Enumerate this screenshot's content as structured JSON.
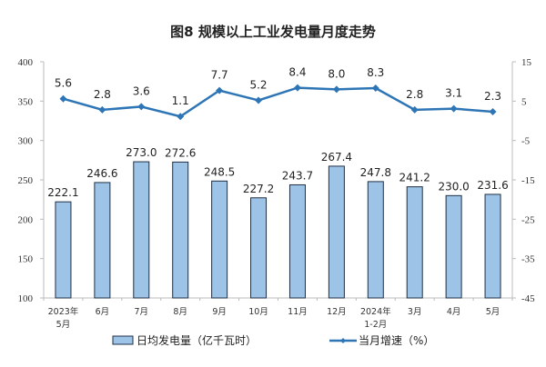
{
  "chart_data": {
    "type": "bar+line",
    "title": "图8  规模以上工业发电量月度走势",
    "categories": [
      [
        "2023年",
        "5月"
      ],
      [
        "6月"
      ],
      [
        "7月"
      ],
      [
        "8月"
      ],
      [
        "9月"
      ],
      [
        "10月"
      ],
      [
        "11月"
      ],
      [
        "12月"
      ],
      [
        "2024年",
        "1-2月"
      ],
      [
        "3月"
      ],
      [
        "4月"
      ],
      [
        "5月"
      ]
    ],
    "series": [
      {
        "name": "日均发电量（亿千瓦时）",
        "type": "bar",
        "axis": "left",
        "values": [
          222.1,
          246.6,
          273.0,
          272.6,
          248.5,
          227.2,
          243.7,
          267.4,
          247.8,
          241.2,
          230.0,
          231.6
        ],
        "labels": [
          "222.1",
          "246.6",
          "273.0",
          "272.6",
          "248.5",
          "227.2",
          "243.7",
          "267.4",
          "247.8",
          "241.2",
          "230.0",
          "231.6"
        ],
        "color": "#9dc3e6"
      },
      {
        "name": "当月增速（%）",
        "type": "line",
        "axis": "right",
        "values": [
          5.6,
          2.8,
          3.6,
          1.1,
          7.7,
          5.2,
          8.4,
          8.0,
          8.3,
          2.8,
          3.1,
          2.3
        ],
        "labels": [
          "5.6",
          "2.8",
          "3.6",
          "1.1",
          "7.7",
          "5.2",
          "8.4",
          "8.0",
          "8.3",
          "2.8",
          "3.1",
          "2.3"
        ],
        "color": "#2e75b6"
      }
    ],
    "y_left": {
      "range": [
        100,
        400
      ],
      "ticks": [
        "100",
        "150",
        "200",
        "250",
        "300",
        "350",
        "400"
      ]
    },
    "y_right": {
      "range": [
        -45,
        15
      ],
      "ticks": [
        "-45",
        "-35",
        "-25",
        "-15",
        "-5",
        "5",
        "15"
      ]
    },
    "grid": false,
    "legend_placement": "bottom"
  }
}
